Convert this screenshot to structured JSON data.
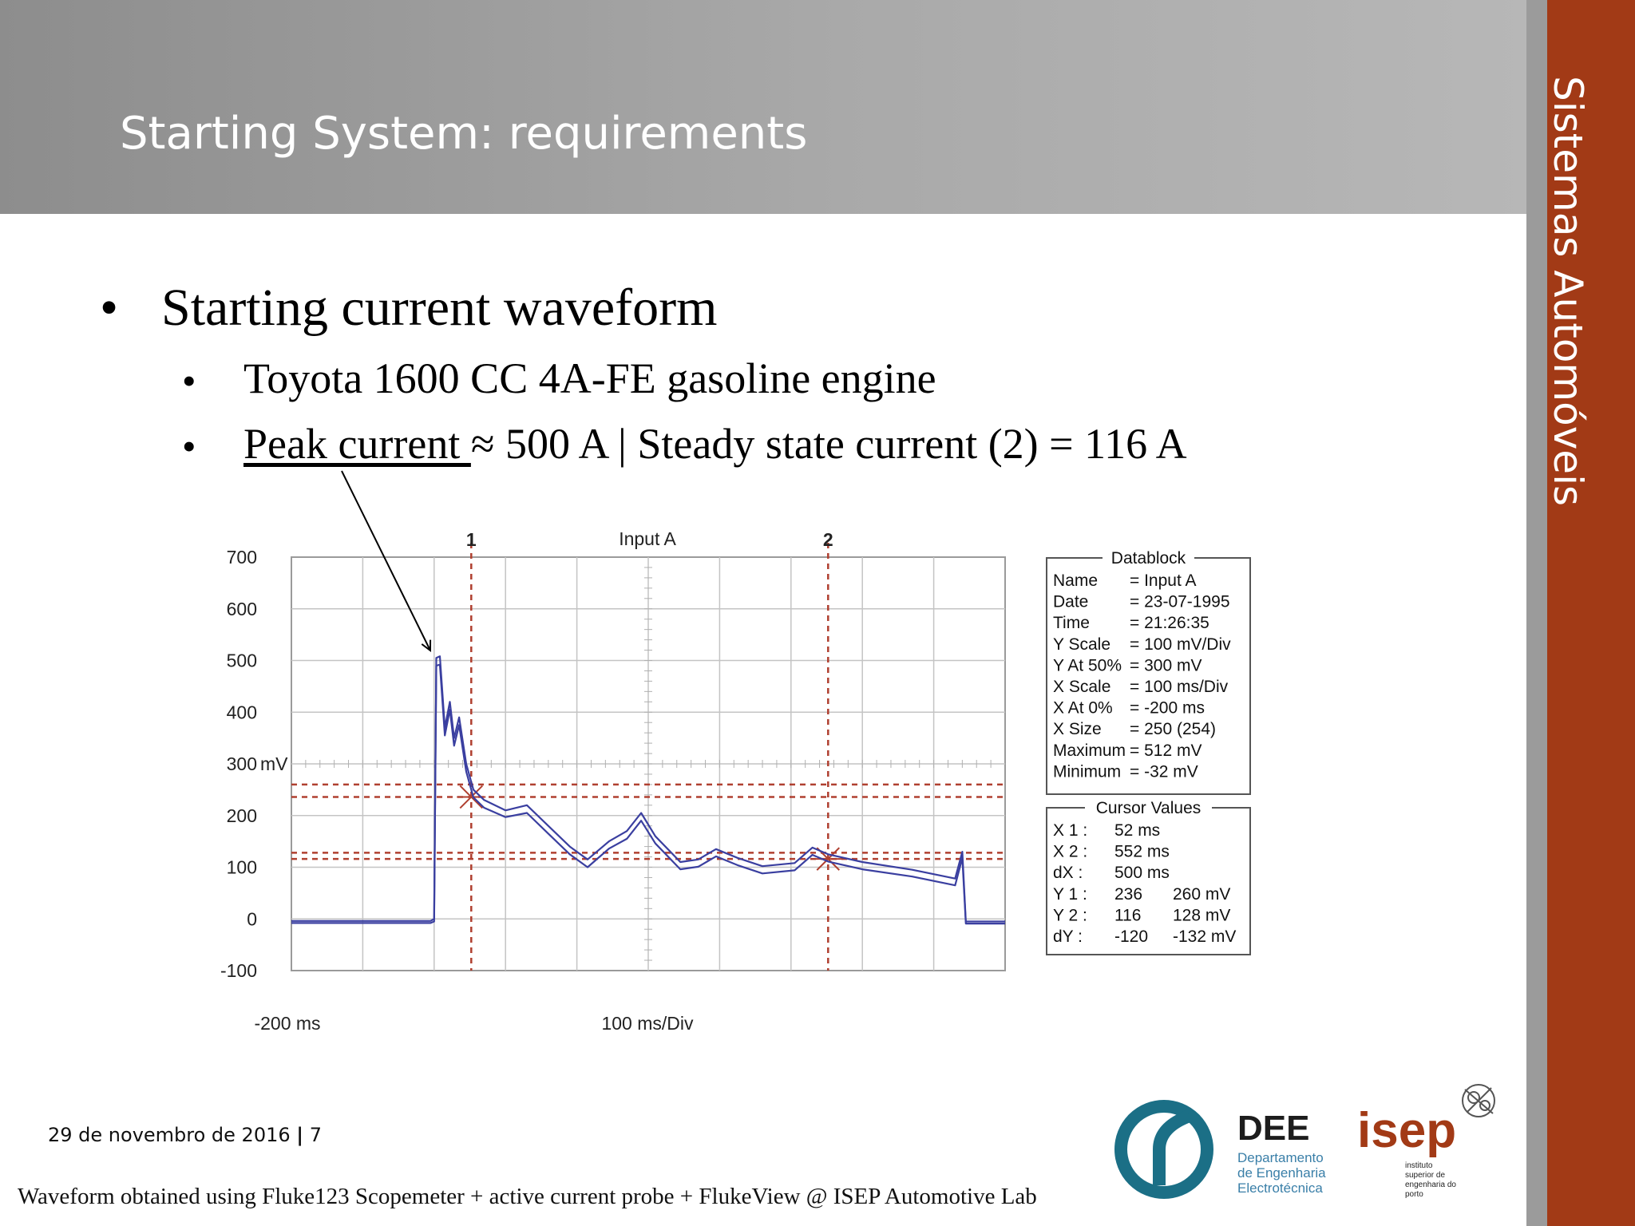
{
  "slide": {
    "title": "Starting System: requirements",
    "sidebar_label": "Sistemas Automóveis",
    "bullets": {
      "main": "Starting current waveform",
      "sub1": "Toyota 1600 CC 4A-FE gasoline engine",
      "sub2_underlined": "Peak current ",
      "sub2_rest": "≈ 500 A | Steady state current (2) = 116 A"
    },
    "footer": {
      "date": "29 de novembro de 2016",
      "page_sep": "|",
      "page": "7",
      "credit": "Waveform obtained using Fluke123 Scopemeter + active current probe + FlukeView @ ISEP Automotive Lab"
    },
    "logos": {
      "dee_title": "DEE",
      "dee_line1": "Departamento",
      "dee_line2": "de Engenharia",
      "dee_line3": "Electrotécnica",
      "isep_title": "isep",
      "isep_line1": "instituto",
      "isep_line2": "superior de",
      "isep_line3": "engenharia do",
      "isep_line4": "porto"
    },
    "colors": {
      "sidebar": "#a23a16",
      "trace": "#3a3fa0",
      "cursor": "#b04030"
    }
  },
  "chart_data": {
    "type": "line",
    "title": "Input A",
    "x_unit_label": "100 ms/Div",
    "x_start_label": "-200 ms",
    "y_unit": "mV",
    "y_ticks": [
      "700",
      "600",
      "500",
      "400",
      "300",
      "200",
      "100",
      "0",
      "-100"
    ],
    "y_unit_tick": "300",
    "ylim": [
      -100,
      700
    ],
    "xlim": [
      -200,
      800
    ],
    "cursors": [
      {
        "label": "1",
        "x": 52,
        "y_levels": [
          236,
          260
        ]
      },
      {
        "label": "2",
        "x": 552,
        "y_levels": [
          116,
          128
        ]
      }
    ],
    "series": [
      {
        "points": [
          [
            -200,
            -4
          ],
          [
            -100,
            -4
          ],
          [
            -5,
            -4
          ],
          [
            0,
            0
          ],
          [
            3,
            505
          ],
          [
            8,
            508
          ],
          [
            15,
            370
          ],
          [
            22,
            420
          ],
          [
            28,
            350
          ],
          [
            35,
            390
          ],
          [
            45,
            300
          ],
          [
            55,
            250
          ],
          [
            70,
            230
          ],
          [
            100,
            210
          ],
          [
            130,
            220
          ],
          [
            160,
            180
          ],
          [
            190,
            140
          ],
          [
            215,
            115
          ],
          [
            245,
            150
          ],
          [
            270,
            170
          ],
          [
            290,
            205
          ],
          [
            310,
            160
          ],
          [
            345,
            110
          ],
          [
            370,
            115
          ],
          [
            395,
            135
          ],
          [
            425,
            118
          ],
          [
            460,
            102
          ],
          [
            505,
            108
          ],
          [
            530,
            138
          ],
          [
            552,
            125
          ],
          [
            600,
            110
          ],
          [
            670,
            95
          ],
          [
            730,
            78
          ],
          [
            740,
            130
          ],
          [
            745,
            -5
          ],
          [
            800,
            -5
          ]
        ]
      },
      {
        "points": [
          [
            -200,
            -8
          ],
          [
            -100,
            -8
          ],
          [
            -5,
            -8
          ],
          [
            0,
            -5
          ],
          [
            3,
            490
          ],
          [
            8,
            492
          ],
          [
            15,
            355
          ],
          [
            22,
            405
          ],
          [
            28,
            335
          ],
          [
            35,
            375
          ],
          [
            45,
            285
          ],
          [
            55,
            235
          ],
          [
            70,
            215
          ],
          [
            100,
            197
          ],
          [
            130,
            205
          ],
          [
            160,
            165
          ],
          [
            190,
            125
          ],
          [
            215,
            100
          ],
          [
            245,
            136
          ],
          [
            270,
            155
          ],
          [
            290,
            190
          ],
          [
            310,
            146
          ],
          [
            345,
            96
          ],
          [
            370,
            101
          ],
          [
            395,
            121
          ],
          [
            425,
            104
          ],
          [
            460,
            88
          ],
          [
            505,
            94
          ],
          [
            530,
            124
          ],
          [
            552,
            111
          ],
          [
            600,
            96
          ],
          [
            670,
            82
          ],
          [
            730,
            65
          ],
          [
            740,
            118
          ],
          [
            745,
            -9
          ],
          [
            800,
            -9
          ]
        ]
      }
    ],
    "datablock": {
      "title": "Datablock",
      "rows": [
        [
          "Name",
          "= Input A"
        ],
        [
          "Date",
          "= 23-07-1995"
        ],
        [
          "Time",
          "= 21:26:35"
        ],
        [
          "Y Scale",
          "= 100 mV/Div"
        ],
        [
          "Y At 50%",
          "= 300 mV"
        ],
        [
          "X Scale",
          "= 100 ms/Div"
        ],
        [
          "X At 0%",
          "= -200 ms"
        ],
        [
          "X Size",
          "= 250 (254)"
        ],
        [
          "Maximum",
          "= 512 mV"
        ],
        [
          "Minimum",
          "= -32 mV"
        ]
      ]
    },
    "cursor_values": {
      "title": "Cursor Values",
      "rows": [
        [
          "X 1 :",
          "52 ms",
          ""
        ],
        [
          "X 2 :",
          "552 ms",
          ""
        ],
        [
          "dX :",
          "500 ms",
          ""
        ],
        [
          "Y 1 :",
          "236",
          "260 mV"
        ],
        [
          "Y 2 :",
          "116",
          "128 mV"
        ],
        [
          "dY :",
          "-120",
          "-132 mV"
        ]
      ]
    }
  }
}
